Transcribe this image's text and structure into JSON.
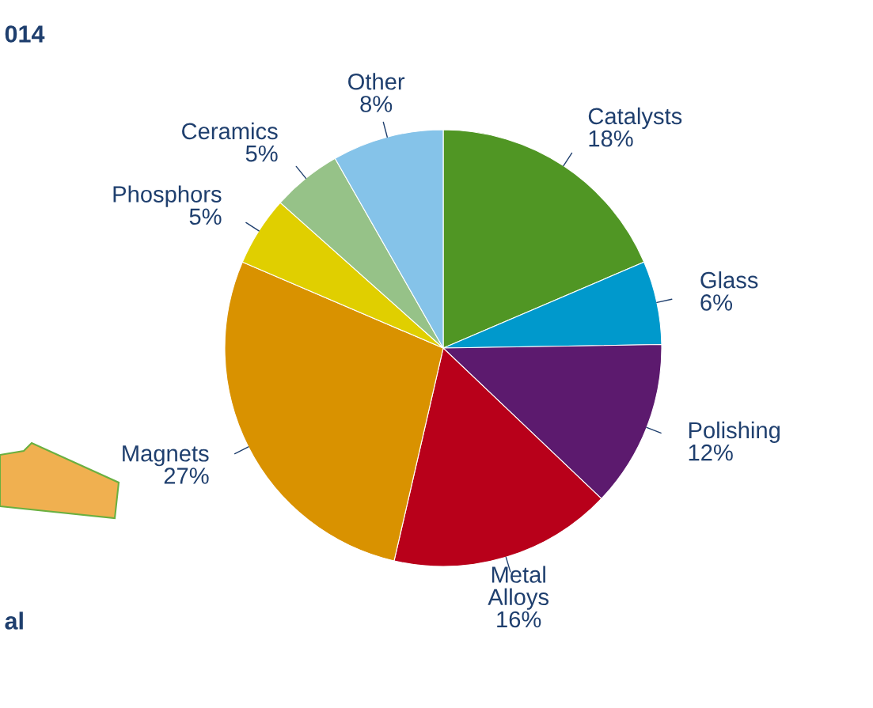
{
  "chart_data": {
    "type": "pie",
    "categories": [
      "Catalysts",
      "Glass",
      "Polishing",
      "Metal\nAlloys",
      "Magnets",
      "Phosphors",
      "Ceramics",
      "Other"
    ],
    "values": [
      18,
      6,
      12,
      16,
      27,
      5,
      5,
      8
    ],
    "colors": [
      "#509624",
      "#0099cc",
      "#5c1a6e",
      "#b8001a",
      "#d99200",
      "#e0cf00",
      "#96c288",
      "#85c3e9"
    ],
    "value_labels": [
      "18%",
      "6%",
      "12%",
      "16%",
      "27%",
      "5%",
      "5%",
      "8%"
    ],
    "annotations": [
      "014",
      "al"
    ]
  }
}
